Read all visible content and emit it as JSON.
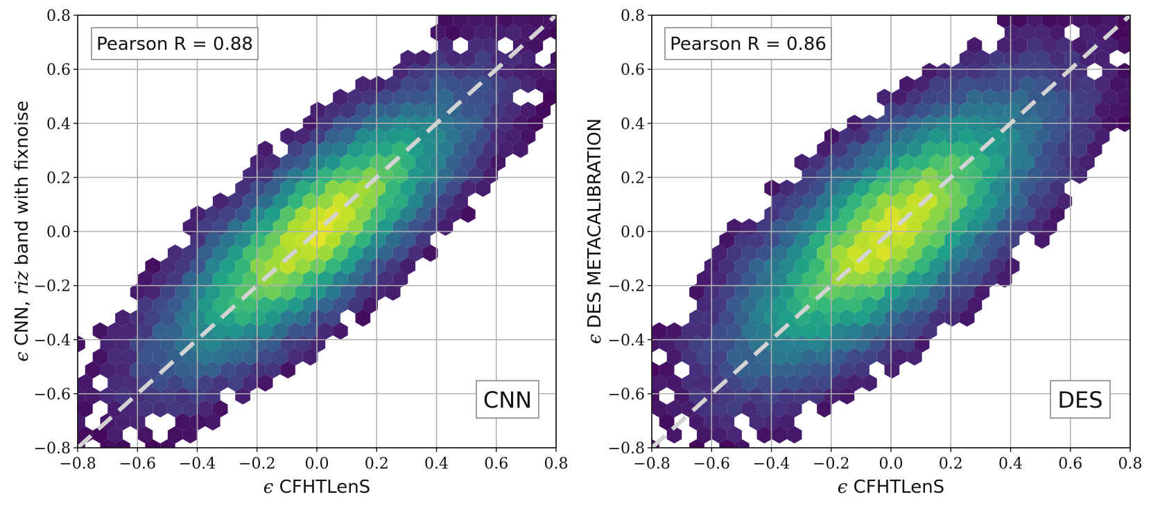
{
  "chart_data": [
    {
      "type": "scatter",
      "subtype": "hexbin",
      "xlabel_symbol": "ϵ",
      "xlabel_text": "CFHTLenS",
      "ylabel_symbol": "ϵ",
      "ylabel_text": "CNN,",
      "ylabel_italic": "riz",
      "ylabel_suffix": "band with fixnoise",
      "xlim": [
        -0.8,
        0.8
      ],
      "ylim": [
        -0.8,
        0.8
      ],
      "xticks": [
        -0.8,
        -0.6,
        -0.4,
        -0.2,
        0.0,
        0.2,
        0.4,
        0.6,
        0.8
      ],
      "yticks": [
        -0.8,
        -0.6,
        -0.4,
        -0.2,
        0.0,
        0.2,
        0.4,
        0.6,
        0.8
      ],
      "xtick_labels": [
        "−0.8",
        "−0.6",
        "−0.4",
        "−0.2",
        "0.0",
        "0.2",
        "0.4",
        "0.6",
        "0.8"
      ],
      "ytick_labels": [
        "−0.8",
        "−0.6",
        "−0.4",
        "−0.2",
        "0.0",
        "0.2",
        "0.4",
        "0.6",
        "0.8"
      ],
      "grid": true,
      "annotation": "Pearson R = 0.88",
      "pearson_r": 0.88,
      "panel_label": "CNN",
      "reference_line": {
        "style": "dashed",
        "color": "#d3d3d3",
        "x": [
          -0.8,
          0.8
        ],
        "y": [
          -0.8,
          0.8
        ]
      },
      "distribution": {
        "center": [
          0.0,
          0.0
        ],
        "slope": 1.0,
        "spread_along": 0.3,
        "spread_across": 0.1,
        "outlier_width": 0.27
      },
      "colormap": "viridis"
    },
    {
      "type": "scatter",
      "subtype": "hexbin",
      "xlabel_symbol": "ϵ",
      "xlabel_text": "CFHTLenS",
      "ylabel_symbol": "ϵ",
      "ylabel_text": "DES METACALIBRATION",
      "ylabel_italic": "",
      "ylabel_suffix": "",
      "xlim": [
        -0.8,
        0.8
      ],
      "ylim": [
        -0.8,
        0.8
      ],
      "xticks": [
        -0.8,
        -0.6,
        -0.4,
        -0.2,
        0.0,
        0.2,
        0.4,
        0.6,
        0.8
      ],
      "yticks": [
        -0.8,
        -0.6,
        -0.4,
        -0.2,
        0.0,
        0.2,
        0.4,
        0.6,
        0.8
      ],
      "xtick_labels": [
        "−0.8",
        "−0.6",
        "−0.4",
        "−0.2",
        "0.0",
        "0.2",
        "0.4",
        "0.6",
        "0.8"
      ],
      "ytick_labels": [
        "−0.8",
        "−0.6",
        "−0.4",
        "−0.2",
        "0.0",
        "0.2",
        "0.4",
        "0.6",
        "0.8"
      ],
      "grid": true,
      "annotation": "Pearson R = 0.86",
      "pearson_r": 0.86,
      "panel_label": "DES",
      "reference_line": {
        "style": "dashed",
        "color": "#d3d3d3",
        "x": [
          -0.8,
          0.8
        ],
        "y": [
          -0.8,
          0.8
        ]
      },
      "distribution": {
        "center": [
          0.0,
          0.0
        ],
        "slope": 1.0,
        "spread_along": 0.3,
        "spread_across": 0.12,
        "outlier_width": 0.31
      },
      "colormap": "viridis"
    }
  ]
}
